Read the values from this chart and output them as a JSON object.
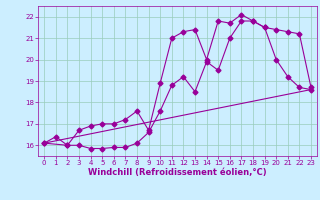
{
  "xlabel": "Windchill (Refroidissement éolien,°C)",
  "bg_color": "#cceeff",
  "line_color": "#990099",
  "grid_color": "#99ccbb",
  "xlim": [
    -0.5,
    23.5
  ],
  "ylim": [
    15.5,
    22.5
  ],
  "xticks": [
    0,
    1,
    2,
    3,
    4,
    5,
    6,
    7,
    8,
    9,
    10,
    11,
    12,
    13,
    14,
    15,
    16,
    17,
    18,
    19,
    20,
    21,
    22,
    23
  ],
  "yticks": [
    16,
    17,
    18,
    19,
    20,
    21,
    22
  ],
  "series1_x": [
    0,
    1,
    2,
    3,
    4,
    5,
    6,
    7,
    8,
    9,
    10,
    11,
    12,
    13,
    14,
    15,
    16,
    17,
    18,
    19,
    20,
    21,
    22,
    23
  ],
  "series1_y": [
    16.1,
    16.4,
    16.0,
    16.0,
    15.85,
    15.85,
    15.9,
    15.9,
    16.1,
    16.6,
    17.6,
    18.8,
    19.2,
    18.5,
    19.9,
    19.5,
    21.0,
    21.8,
    21.8,
    21.5,
    20.0,
    19.2,
    18.7,
    18.6
  ],
  "series2_x": [
    0,
    2,
    3,
    4,
    5,
    6,
    7,
    8,
    9,
    10,
    11,
    12,
    13,
    14,
    15,
    16,
    17,
    18,
    19,
    20,
    21,
    22,
    23
  ],
  "series2_y": [
    16.1,
    16.0,
    16.7,
    16.9,
    17.0,
    17.0,
    17.2,
    17.6,
    16.7,
    18.9,
    21.0,
    21.3,
    21.4,
    20.0,
    21.8,
    21.7,
    22.1,
    21.8,
    21.5,
    21.4,
    21.3,
    21.2,
    18.7
  ],
  "series3_x": [
    0,
    23
  ],
  "series3_y": [
    16.1,
    18.6
  ],
  "marker_size": 2.5,
  "linewidth": 0.8,
  "tick_fontsize": 5,
  "label_fontsize": 6
}
